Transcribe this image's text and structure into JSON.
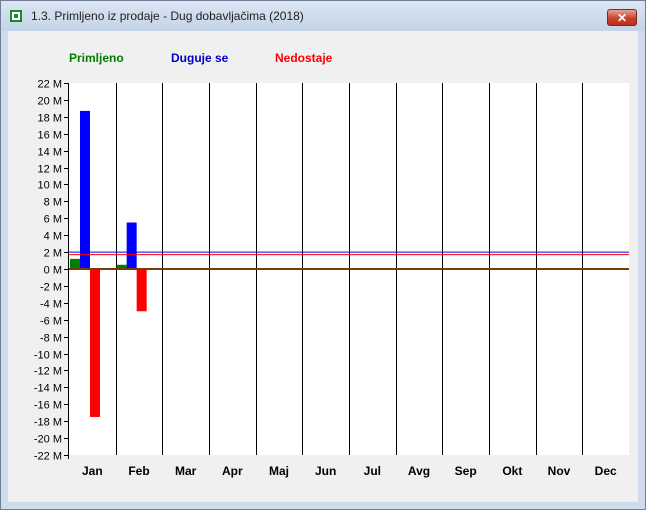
{
  "window": {
    "title": "1.3. Primljeno iz prodaje - Dug dobavljačima (2018)",
    "close_icon": "close-icon",
    "app_icon": "app-icon"
  },
  "legend": {
    "items": [
      {
        "label": "Primljeno",
        "color": "#008000"
      },
      {
        "label": "Duguje se",
        "color": "#0000cc"
      },
      {
        "label": "Nedostaje",
        "color": "#ff0000"
      }
    ]
  },
  "chart_data": {
    "type": "bar",
    "categories": [
      "Jan",
      "Feb",
      "Mar",
      "Apr",
      "Maj",
      "Jun",
      "Jul",
      "Avg",
      "Sep",
      "Okt",
      "Nov",
      "Dec"
    ],
    "series": [
      {
        "name": "Primljeno",
        "color": "#008000",
        "values": [
          1.2,
          0.5,
          0,
          0,
          0,
          0,
          0,
          0,
          0,
          0,
          0,
          0
        ]
      },
      {
        "name": "Duguje se",
        "color": "#0000ff",
        "values": [
          18.7,
          5.5,
          0,
          0,
          0,
          0,
          0,
          0,
          0,
          0,
          0,
          0
        ]
      },
      {
        "name": "Nedostaje",
        "color": "#ff0000",
        "values": [
          -17.5,
          -5.0,
          0,
          0,
          0,
          0,
          0,
          0,
          0,
          0,
          0,
          0
        ]
      }
    ],
    "reference_lines": [
      {
        "value": 2.0,
        "color": "#0000ff"
      },
      {
        "value": 1.7,
        "color": "#ff0000"
      }
    ],
    "ylim": [
      -22,
      22
    ],
    "yticks": [
      22,
      20,
      18,
      16,
      14,
      12,
      10,
      8,
      6,
      4,
      2,
      0,
      -2,
      -4,
      -6,
      -8,
      -10,
      -12,
      -14,
      -16,
      -18,
      -20,
      -22
    ],
    "ytick_suffix": " M",
    "grid": "vertical separators between months",
    "legend_position": "top"
  }
}
